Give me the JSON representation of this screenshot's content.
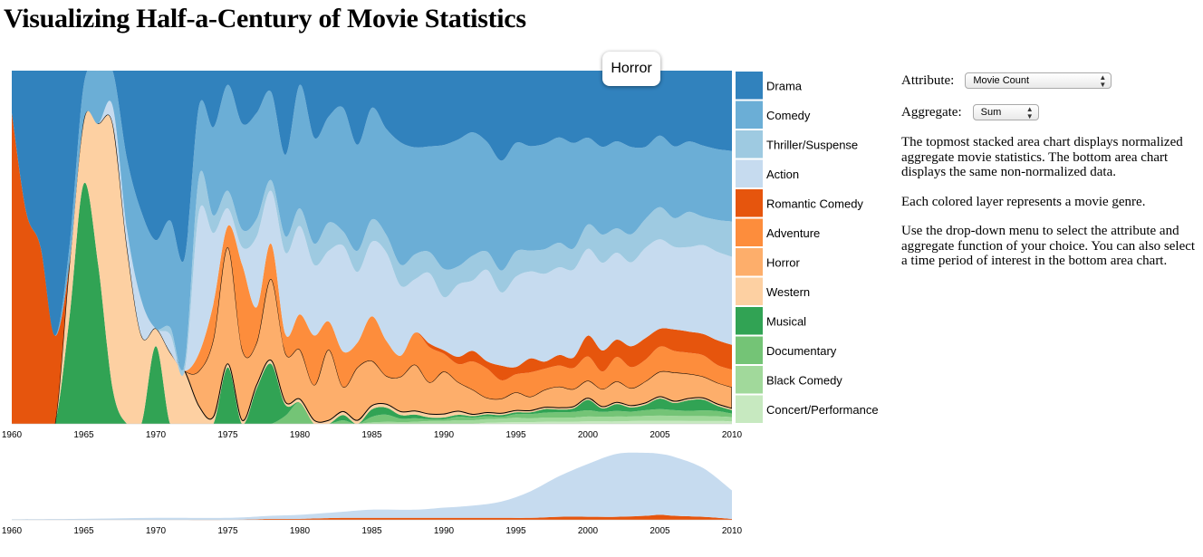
{
  "page": {
    "title": "Visualizing Half-a-Century of Movie Statistics"
  },
  "tooltip": {
    "text": "Horror"
  },
  "controls": {
    "attribute_label": "Attribute:",
    "attribute_value": "Movie Count",
    "aggregate_label": "Aggregate:",
    "aggregate_value": "Sum"
  },
  "description": {
    "p1": "The topmost stacked area chart displays normalized aggregate movie statistics. The bottom area chart displays the same non-normalized data.",
    "p2": "Each colored layer represents a movie genre.",
    "p3": "Use the drop-down menu to select the attribute and aggregate function of your choice. You can also select a time period of interest in the bottom area chart."
  },
  "chart_data": [
    {
      "type": "area",
      "title": "",
      "normalized": true,
      "stack_order": "bottom-to-top",
      "xlim": [
        1960,
        2010
      ],
      "ylim": [
        0,
        1
      ],
      "x_ticks": [
        1960,
        1965,
        1970,
        1975,
        1980,
        1985,
        1990,
        1995,
        2000,
        2005,
        2010
      ],
      "highlighted_series": "Horror",
      "legend_position": "right",
      "x": [
        1960,
        1961,
        1962,
        1963,
        1964,
        1965,
        1966,
        1967,
        1968,
        1969,
        1970,
        1971,
        1972,
        1973,
        1974,
        1975,
        1976,
        1977,
        1978,
        1979,
        1980,
        1981,
        1982,
        1983,
        1984,
        1985,
        1986,
        1987,
        1988,
        1989,
        1990,
        1991,
        1992,
        1993,
        1994,
        1995,
        1996,
        1997,
        1998,
        1999,
        2000,
        2001,
        2002,
        2003,
        2004,
        2005,
        2006,
        2007,
        2008,
        2009,
        2010
      ],
      "series": [
        {
          "name": "Concert/Performance",
          "color": "#c7e9c0",
          "values": [
            0,
            0,
            0,
            0,
            0,
            0,
            0,
            0,
            0,
            0,
            0,
            0,
            0,
            0,
            0,
            0,
            0,
            0,
            0,
            0,
            0,
            0,
            0,
            0,
            0,
            0,
            0,
            0,
            0,
            0,
            0,
            0,
            0,
            0.003,
            0.004,
            0.005,
            0.005,
            0.006,
            0.006,
            0.006,
            0.007,
            0.007,
            0.007,
            0.008,
            0.008,
            0.008,
            0.008,
            0.008,
            0.008,
            0.008,
            0.007
          ]
        },
        {
          "name": "Black Comedy",
          "color": "#a1d99b",
          "values": [
            0,
            0,
            0,
            0,
            0,
            0,
            0,
            0,
            0,
            0,
            0,
            0,
            0,
            0,
            0,
            0,
            0,
            0,
            0,
            0,
            0,
            0,
            0,
            0,
            0,
            0.004,
            0.006,
            0.005,
            0.006,
            0.008,
            0.008,
            0.01,
            0.01,
            0.01,
            0.01,
            0.012,
            0.011,
            0.012,
            0.012,
            0.012,
            0.014,
            0.013,
            0.014,
            0.013,
            0.014,
            0.015,
            0.014,
            0.014,
            0.014,
            0.013,
            0.012
          ]
        },
        {
          "name": "Documentary",
          "color": "#74c476",
          "values": [
            0,
            0,
            0,
            0,
            0,
            0,
            0,
            0,
            0,
            0,
            0,
            0,
            0,
            0,
            0,
            0,
            0,
            0,
            0,
            0.03,
            0.06,
            0,
            0,
            0.01,
            0,
            0.015,
            0.02,
            0.01,
            0.01,
            0.005,
            0.005,
            0.01,
            0.008,
            0.008,
            0.005,
            0.01,
            0.012,
            0.014,
            0.015,
            0.016,
            0.018,
            0.014,
            0.016,
            0.014,
            0.016,
            0.018,
            0.016,
            0.015,
            0.016,
            0.015,
            0.01
          ]
        },
        {
          "name": "Musical",
          "color": "#31a354",
          "values": [
            0,
            0,
            0,
            0,
            0.3,
            0.68,
            0.45,
            0.1,
            0,
            0,
            0.22,
            0,
            0,
            0,
            0,
            0.16,
            0,
            0.1,
            0.17,
            0.04,
            0,
            0,
            0,
            0.015,
            0,
            0.02,
            0.02,
            0.01,
            0.01,
            0.005,
            0.005,
            0.005,
            0.004,
            0.005,
            0.005,
            0.005,
            0.005,
            0.01,
            0.008,
            0.01,
            0.03,
            0.01,
            0.02,
            0.012,
            0.015,
            0.03,
            0.02,
            0.03,
            0.03,
            0.015,
            0.01
          ]
        },
        {
          "name": "Western",
          "color": "#fdd0a2",
          "values": [
            0,
            0,
            0,
            0,
            0.15,
            0.18,
            0.4,
            0.75,
            0.5,
            0.25,
            0.05,
            0.2,
            0.15,
            0.05,
            0.02,
            0.01,
            0.01,
            0.01,
            0.01,
            0.01,
            0.01,
            0.01,
            0.01,
            0.01,
            0.01,
            0.01,
            0.01,
            0.01,
            0.01,
            0.01,
            0.01,
            0.01,
            0.005,
            0.005,
            0.005,
            0.005,
            0.005,
            0.005,
            0.005,
            0.005,
            0.005,
            0.005,
            0.005,
            0.005,
            0.005,
            0.005,
            0.005,
            0.005,
            0.005,
            0.005,
            0.005
          ]
        },
        {
          "name": "Horror",
          "color": "#fdae6b",
          "values": [
            0,
            0,
            0,
            0,
            0,
            0,
            0,
            0,
            0,
            0,
            0,
            0,
            0,
            0.1,
            0.22,
            0.33,
            0.2,
            0.12,
            0.23,
            0.18,
            0.14,
            0.1,
            0.2,
            0.07,
            0.15,
            0.12,
            0.08,
            0.1,
            0.13,
            0.09,
            0.12,
            0.08,
            0.07,
            0.04,
            0.04,
            0.05,
            0.04,
            0.05,
            0.06,
            0.05,
            0.05,
            0.05,
            0.06,
            0.05,
            0.06,
            0.07,
            0.08,
            0.07,
            0.06,
            0.06,
            0.06
          ]
        },
        {
          "name": "Adventure",
          "color": "#fd8d3c",
          "values": [
            0,
            0,
            0,
            0,
            0,
            0,
            0,
            0,
            0,
            0,
            0,
            0,
            0,
            0.05,
            0.1,
            0.06,
            0.24,
            0.1,
            0.1,
            0.07,
            0.1,
            0.14,
            0.08,
            0.1,
            0.07,
            0.12,
            0.1,
            0.06,
            0.09,
            0.1,
            0.05,
            0.05,
            0.08,
            0.08,
            0.05,
            0.05,
            0.07,
            0.06,
            0.06,
            0.06,
            0.07,
            0.05,
            0.07,
            0.06,
            0.06,
            0.07,
            0.06,
            0.06,
            0.06,
            0.05,
            0.05
          ]
        },
        {
          "name": "Romantic Comedy",
          "color": "#e6550d",
          "values": [
            0.88,
            0.6,
            0.5,
            0.25,
            0,
            0,
            0,
            0,
            0,
            0,
            0,
            0,
            0,
            0,
            0,
            0,
            0,
            0,
            0,
            0,
            0,
            0,
            0,
            0,
            0,
            0,
            0,
            0,
            0,
            0.01,
            0.01,
            0.02,
            0.03,
            0.02,
            0.04,
            0.02,
            0.04,
            0.02,
            0.03,
            0.03,
            0.06,
            0.06,
            0.05,
            0.06,
            0.06,
            0.05,
            0.06,
            0.06,
            0.06,
            0.07,
            0.07
          ]
        },
        {
          "name": "Action",
          "color": "#c6dbef",
          "values": [
            0,
            0,
            0,
            0,
            0,
            0,
            0,
            0.05,
            0.05,
            0.1,
            0.0,
            0.05,
            0,
            0.4,
            0.2,
            0.05,
            0.05,
            0.2,
            0.15,
            0.3,
            0.25,
            0.2,
            0.2,
            0.3,
            0.2,
            0.2,
            0.25,
            0.2,
            0.15,
            0.2,
            0.15,
            0.2,
            0.2,
            0.25,
            0.2,
            0.25,
            0.25,
            0.25,
            0.25,
            0.25,
            0.25,
            0.25,
            0.25,
            0.24,
            0.25,
            0.25,
            0.23,
            0.24,
            0.25,
            0.25,
            0.25
          ]
        },
        {
          "name": "Thriller/Suspense",
          "color": "#9ecae1",
          "values": [
            0,
            0,
            0,
            0,
            0,
            0,
            0,
            0,
            0,
            0,
            0,
            0.02,
            0.02,
            0.1,
            0.05,
            0.05,
            0.05,
            0.05,
            0.03,
            0.06,
            0.05,
            0.06,
            0.08,
            0.04,
            0.06,
            0.06,
            0.05,
            0.06,
            0.07,
            0.06,
            0.08,
            0.05,
            0.07,
            0.05,
            0.06,
            0.07,
            0.06,
            0.07,
            0.07,
            0.06,
            0.07,
            0.08,
            0.07,
            0.08,
            0.08,
            0.09,
            0.08,
            0.1,
            0.08,
            0.09,
            0.1
          ]
        },
        {
          "name": "Comedy",
          "color": "#6baed6",
          "values": [
            0,
            0,
            0,
            0,
            0.05,
            0.1,
            0.15,
            0.1,
            0.2,
            0.25,
            0.25,
            0.3,
            0.3,
            0.2,
            0.25,
            0.3,
            0.3,
            0.3,
            0.25,
            0.3,
            0.35,
            0.3,
            0.3,
            0.35,
            0.3,
            0.3,
            0.3,
            0.35,
            0.3,
            0.3,
            0.35,
            0.35,
            0.35,
            0.3,
            0.3,
            0.3,
            0.3,
            0.3,
            0.3,
            0.3,
            0.25,
            0.25,
            0.25,
            0.25,
            0.2,
            0.2,
            0.2,
            0.2,
            0.2,
            0.2,
            0.2
          ]
        },
        {
          "name": "Drama",
          "color": "#3182bd",
          "values": [
            0.12,
            0.4,
            0.5,
            0.75,
            0.5,
            0.04,
            0,
            0,
            0.25,
            0.4,
            0.48,
            0.42,
            0.53,
            0.1,
            0.16,
            0.04,
            0.15,
            0.12,
            0.06,
            0.31,
            0.04,
            0.19,
            0.13,
            0.105,
            0.21,
            0.1,
            0.165,
            0.205,
            0.215,
            0.215,
            0.21,
            0.19,
            0.175,
            0.195,
            0.246,
            0.2,
            0.217,
            0.208,
            0.19,
            0.206,
            0.193,
            0.217,
            0.203,
            0.218,
            0.211,
            0.182,
            0.211,
            0.201,
            0.211,
            0.222,
            0.228
          ]
        }
      ]
    },
    {
      "type": "area",
      "title": "",
      "normalized": false,
      "description_role": "context",
      "xlim": [
        1960,
        2010
      ],
      "x_ticks": [
        1960,
        1965,
        1970,
        1975,
        1980,
        1985,
        1990,
        1995,
        2000,
        2005,
        2010
      ],
      "x": [
        1960,
        1965,
        1970,
        1975,
        1978,
        1980,
        1983,
        1985,
        1988,
        1990,
        1992,
        1994,
        1996,
        1998,
        2000,
        2002,
        2004,
        2005,
        2006,
        2008,
        2010
      ],
      "series": [
        {
          "name": "Romantic Comedy",
          "color": "#e6550d",
          "values": [
            0,
            0,
            0,
            0,
            1,
            1,
            2,
            2,
            2,
            2,
            2,
            2,
            2,
            3,
            3,
            3,
            4,
            5,
            4,
            3,
            1
          ]
        },
        {
          "name": "Other genres",
          "color": "#c6dbef",
          "values": [
            0.5,
            1,
            2,
            2,
            3,
            4,
            6,
            8,
            8,
            10,
            12,
            16,
            26,
            40,
            52,
            62,
            62,
            60,
            58,
            48,
            28
          ]
        }
      ]
    }
  ],
  "legend": {
    "items": [
      {
        "name": "Drama",
        "color": "#3182bd"
      },
      {
        "name": "Comedy",
        "color": "#6baed6"
      },
      {
        "name": "Thriller/Suspense",
        "color": "#9ecae1"
      },
      {
        "name": "Action",
        "color": "#c6dbef"
      },
      {
        "name": "Romantic Comedy",
        "color": "#e6550d"
      },
      {
        "name": "Adventure",
        "color": "#fd8d3c"
      },
      {
        "name": "Horror",
        "color": "#fdae6b"
      },
      {
        "name": "Western",
        "color": "#fdd0a2"
      },
      {
        "name": "Musical",
        "color": "#31a354"
      },
      {
        "name": "Documentary",
        "color": "#74c476"
      },
      {
        "name": "Black Comedy",
        "color": "#a1d99b"
      },
      {
        "name": "Concert/Performance",
        "color": "#c7e9c0"
      }
    ]
  }
}
